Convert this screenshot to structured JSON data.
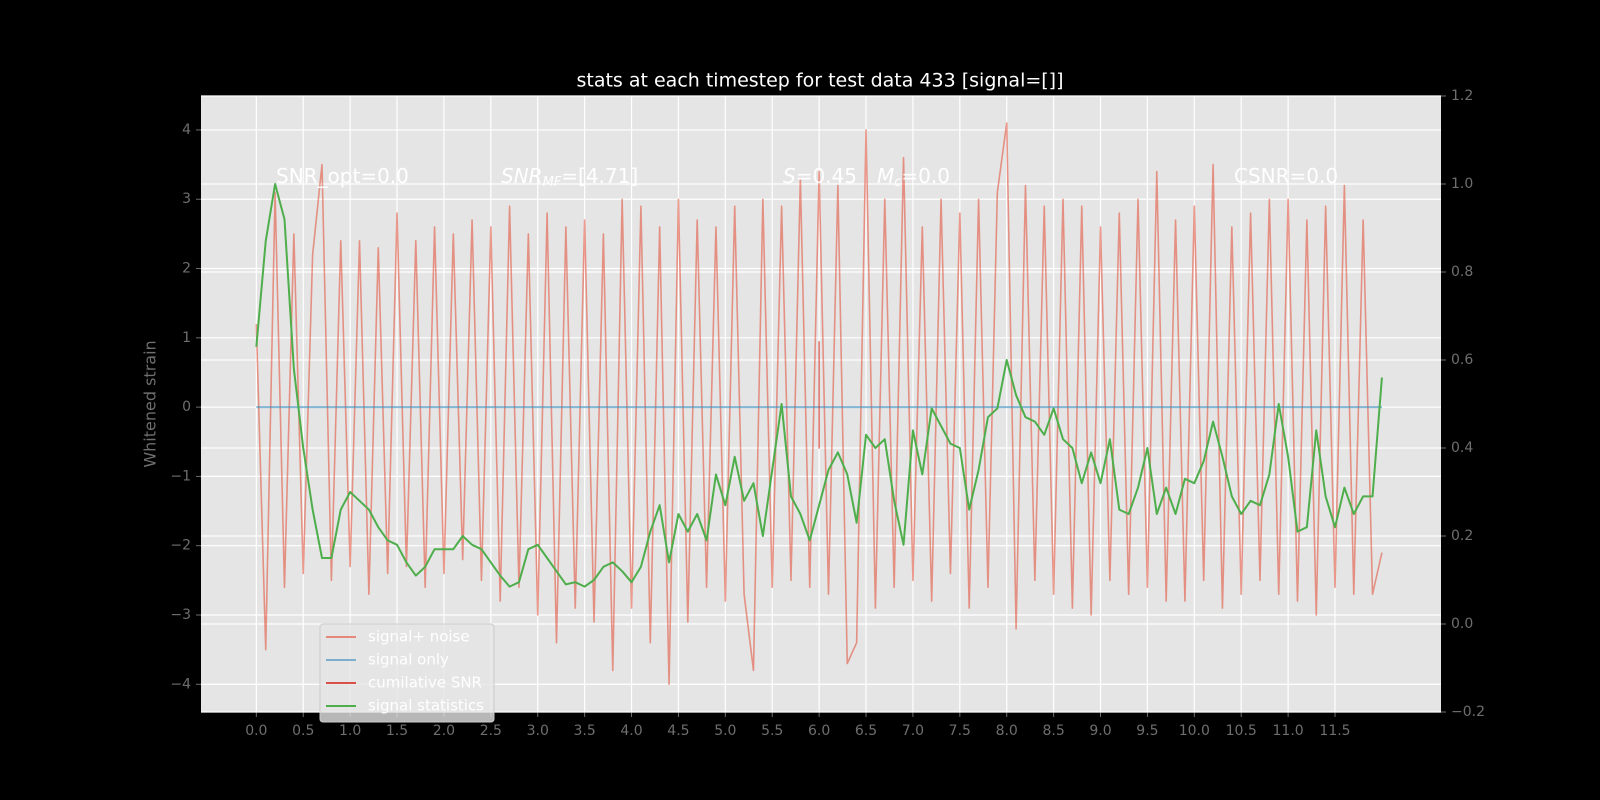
{
  "chart_data": {
    "type": "line",
    "title": "stats at each timestep for test data 433 [signal=[]]",
    "ylabel": "Whitened strain",
    "annotations": [
      [
        "SNR_opt=0.0"
      ],
      [
        "SNR",
        "MF",
        "=[4.71]"
      ],
      [
        "S",
        "=0.45"
      ],
      [
        "M",
        "c",
        "=0.0"
      ],
      [
        "CSNR=0.0"
      ]
    ],
    "x": [
      0.0,
      0.1,
      0.2,
      0.3,
      0.4,
      0.5,
      0.6,
      0.7,
      0.8,
      0.9,
      1.0,
      1.1,
      1.2,
      1.3,
      1.4,
      1.5,
      1.6,
      1.7,
      1.8,
      1.9,
      2.0,
      2.1,
      2.2,
      2.3,
      2.4,
      2.5,
      2.6,
      2.7,
      2.8,
      2.9,
      3.0,
      3.1,
      3.2,
      3.3,
      3.4,
      3.5,
      3.6,
      3.7,
      3.8,
      3.9,
      4.0,
      4.1,
      4.2,
      4.3,
      4.4,
      4.5,
      4.6,
      4.7,
      4.8,
      4.9,
      5.0,
      5.1,
      5.2,
      5.3,
      5.4,
      5.5,
      5.6,
      5.7,
      5.8,
      5.9,
      6.0,
      6.1,
      6.2,
      6.3,
      6.4,
      6.5,
      6.6,
      6.7,
      6.8,
      6.9,
      7.0,
      7.1,
      7.2,
      7.3,
      7.4,
      7.5,
      7.6,
      7.7,
      7.8,
      7.9,
      8.0,
      8.1,
      8.2,
      8.3,
      8.4,
      8.5,
      8.6,
      8.7,
      8.8,
      8.9,
      9.0,
      9.1,
      9.2,
      9.3,
      9.4,
      9.5,
      9.6,
      9.7,
      9.8,
      9.9,
      10.0,
      10.1,
      10.2,
      10.3,
      10.4,
      10.5,
      10.6,
      10.7,
      10.8,
      10.9,
      11.0,
      11.1,
      11.2,
      11.3,
      11.4,
      11.5,
      11.6,
      11.7,
      11.8,
      11.9,
      12.0
    ],
    "series": [
      {
        "name": "signal+ noise",
        "color": "#e24a33",
        "values": [
          1.2,
          -3.5,
          3.1,
          -2.6,
          2.5,
          -2.4,
          2.2,
          3.5,
          -2.5,
          2.4,
          -2.3,
          2.4,
          -2.7,
          2.3,
          -2.4,
          2.8,
          -2.3,
          2.4,
          -2.6,
          2.6,
          -2.4,
          2.5,
          -2.2,
          2.7,
          -2.5,
          2.6,
          -2.8,
          2.9,
          -2.6,
          2.5,
          -3.0,
          2.8,
          -3.4,
          2.6,
          -2.9,
          2.7,
          -3.1,
          2.5,
          -3.8,
          3.0,
          -2.9,
          2.9,
          -3.4,
          2.6,
          -4.0,
          3.0,
          -3.1,
          2.7,
          -2.6,
          2.6,
          -2.8,
          2.9,
          -2.7,
          -3.8,
          3.0,
          -2.6,
          2.9,
          -2.5,
          3.3,
          -2.6,
          3.4,
          -2.7,
          3.2,
          -3.7,
          -3.4,
          4.0,
          -2.9,
          3.0,
          -2.6,
          3.6,
          -2.5,
          2.6,
          -2.8,
          3.0,
          -2.4,
          2.8,
          -2.9,
          3.0,
          -2.6,
          3.1,
          4.1,
          -3.2,
          3.2,
          -2.5,
          2.9,
          -2.7,
          3.0,
          -2.9,
          2.9,
          -3.0,
          2.6,
          -2.5,
          2.8,
          -2.7,
          3.0,
          -2.6,
          3.4,
          -2.8,
          2.7,
          -2.8,
          2.9,
          -2.5,
          3.5,
          -2.9,
          2.6,
          -2.7,
          2.8,
          -2.5,
          3.0,
          -2.7,
          3.0,
          -2.8,
          2.7,
          -3.0,
          2.9,
          -2.6,
          3.2,
          -2.7,
          2.7,
          -2.7,
          -2.1
        ]
      },
      {
        "name": "signal only",
        "color": "#348abd",
        "x": [
          0.0,
          12.0
        ],
        "values": [
          0,
          0
        ]
      },
      {
        "name": "cumilative SNR",
        "color": "#d62a20",
        "x": [
          6.0,
          6.0
        ],
        "values": [
          0.95,
          -0.6
        ]
      },
      {
        "name": "signal statistics",
        "color": "#4eae4b",
        "axis": "y2",
        "values": [
          0.63,
          0.87,
          1.0,
          0.92,
          0.58,
          0.4,
          0.26,
          0.15,
          0.15,
          0.26,
          0.3,
          0.28,
          0.26,
          0.22,
          0.19,
          0.18,
          0.14,
          0.11,
          0.13,
          0.17,
          0.17,
          0.17,
          0.2,
          0.18,
          0.17,
          0.14,
          0.11,
          0.085,
          0.095,
          0.17,
          0.18,
          0.15,
          0.12,
          0.09,
          0.095,
          0.085,
          0.1,
          0.13,
          0.14,
          0.12,
          0.095,
          0.13,
          0.21,
          0.27,
          0.14,
          0.25,
          0.21,
          0.25,
          0.19,
          0.34,
          0.27,
          0.38,
          0.28,
          0.32,
          0.2,
          0.35,
          0.5,
          0.29,
          0.25,
          0.19,
          0.27,
          0.35,
          0.39,
          0.34,
          0.23,
          0.43,
          0.4,
          0.42,
          0.28,
          0.18,
          0.44,
          0.34,
          0.49,
          0.45,
          0.41,
          0.4,
          0.26,
          0.35,
          0.47,
          0.49,
          0.6,
          0.52,
          0.47,
          0.46,
          0.43,
          0.49,
          0.42,
          0.4,
          0.32,
          0.39,
          0.32,
          0.42,
          0.26,
          0.25,
          0.31,
          0.4,
          0.25,
          0.31,
          0.25,
          0.33,
          0.32,
          0.37,
          0.46,
          0.38,
          0.29,
          0.25,
          0.28,
          0.27,
          0.34,
          0.5,
          0.38,
          0.21,
          0.22,
          0.44,
          0.29,
          0.22,
          0.31,
          0.25,
          0.29,
          0.29,
          0.56
        ]
      }
    ],
    "xlim": [
      -0.59,
      12.63
    ],
    "ylim": [
      -4.4,
      4.49
    ],
    "y2lim": [
      -0.2,
      1.2
    ],
    "xticks": [
      {
        "value": 0,
        "label": "0.0"
      },
      0.5,
      {
        "value": 1,
        "label": "1.0"
      },
      1.5,
      {
        "value": 2,
        "label": "2.0"
      },
      2.5,
      {
        "value": 3,
        "label": "3.0"
      },
      3.5,
      {
        "value": 4,
        "label": "4.0"
      },
      4.5,
      {
        "value": 5,
        "label": "5.0"
      },
      5.5,
      {
        "value": 6,
        "label": "6.0"
      },
      6.5,
      {
        "value": 7,
        "label": "7.0"
      },
      7.5,
      {
        "value": 8,
        "label": "8.0"
      },
      8.5,
      {
        "value": 9,
        "label": "9.0"
      },
      9.5,
      {
        "value": 10,
        "label": "10.0"
      },
      10.5,
      {
        "value": 11,
        "label": "11.0"
      },
      11.5
    ],
    "yticks": [
      {
        "value": -4,
        "label": "−4"
      },
      {
        "value": -3,
        "label": "−3"
      },
      {
        "value": -2,
        "label": "−2"
      },
      {
        "value": -1,
        "label": "−1"
      },
      0,
      1,
      2,
      3,
      4
    ],
    "y2ticks": [
      {
        "value": -0.2,
        "label": "−0.2"
      },
      {
        "value": 0,
        "label": "0.0"
      },
      0.2,
      0.4,
      0.6,
      0.8,
      {
        "value": 1,
        "label": "1.0"
      },
      1.2
    ],
    "grid": true,
    "legend": "lower left"
  }
}
